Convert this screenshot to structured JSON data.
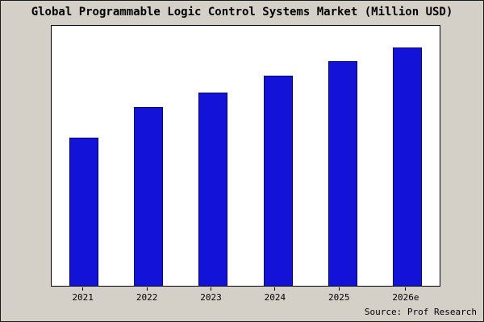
{
  "title": "Global Programmable Logic Control Systems Market (Million USD)",
  "source": "Source: Prof Research",
  "chart_data": {
    "type": "bar",
    "title": "Global Programmable Logic Control Systems Market (Million USD)",
    "categories": [
      "2021",
      "2022",
      "2023",
      "2024",
      "2025",
      "2026e"
    ],
    "values": [
      62,
      75,
      81,
      88,
      94,
      100
    ],
    "value_note": "y-axis has no tick labels or gridlines; values are relative estimates normalized to max bar = 100",
    "xlabel": "",
    "ylabel": "",
    "ylim": [
      0,
      109
    ],
    "grid": false,
    "legend": "none",
    "bar_color": "#1212d9",
    "bar_edge_color": "#000080",
    "background_color": "#d4d0c8",
    "plot_background_color": "#ffffff"
  }
}
